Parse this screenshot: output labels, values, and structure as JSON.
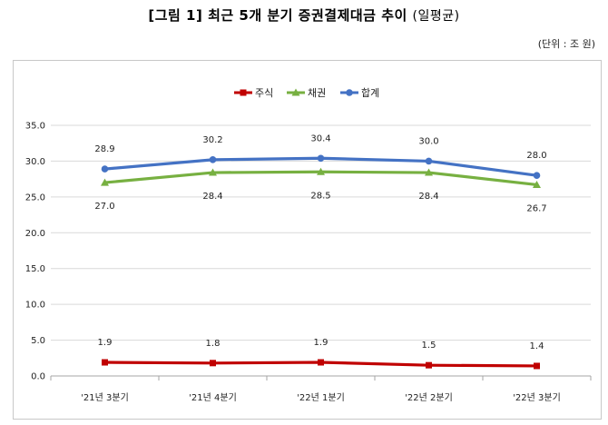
{
  "header": {
    "title": "[그림 1] 최근 5개 분기 증권결제대금 추이",
    "subtitle": "(일평균)",
    "unit": "(단위 : 조 원)"
  },
  "chart_data": {
    "type": "line",
    "title": "",
    "xlabel": "",
    "ylabel": "",
    "categories": [
      "'21년 3분기",
      "'21년 4분기",
      "'22년 1분기",
      "'22년 2분기",
      "'22년 3분기"
    ],
    "ylim": [
      0,
      35
    ],
    "yticks": [
      "0.0",
      "5.0",
      "10.0",
      "15.0",
      "20.0",
      "25.0",
      "30.0",
      "35.0"
    ],
    "grid": true,
    "legend": "top-center",
    "series": [
      {
        "name": "주식",
        "color": "#c00000",
        "marker": "square",
        "values": [
          1.9,
          1.8,
          1.9,
          1.5,
          1.4
        ],
        "labels": [
          "1.9",
          "1.8",
          "1.9",
          "1.5",
          "1.4"
        ],
        "label_pos": "above"
      },
      {
        "name": "채권",
        "color": "#77b041",
        "marker": "triangle",
        "values": [
          27.0,
          28.4,
          28.5,
          28.4,
          26.7
        ],
        "labels": [
          "27.0",
          "28.4",
          "28.5",
          "28.4",
          "26.7"
        ],
        "label_pos": "below"
      },
      {
        "name": "합계",
        "color": "#4472c4",
        "marker": "circle",
        "values": [
          28.9,
          30.2,
          30.4,
          30.0,
          28.0
        ],
        "labels": [
          "28.9",
          "30.2",
          "30.4",
          "30.0",
          "28.0"
        ],
        "label_pos": "above"
      }
    ]
  }
}
